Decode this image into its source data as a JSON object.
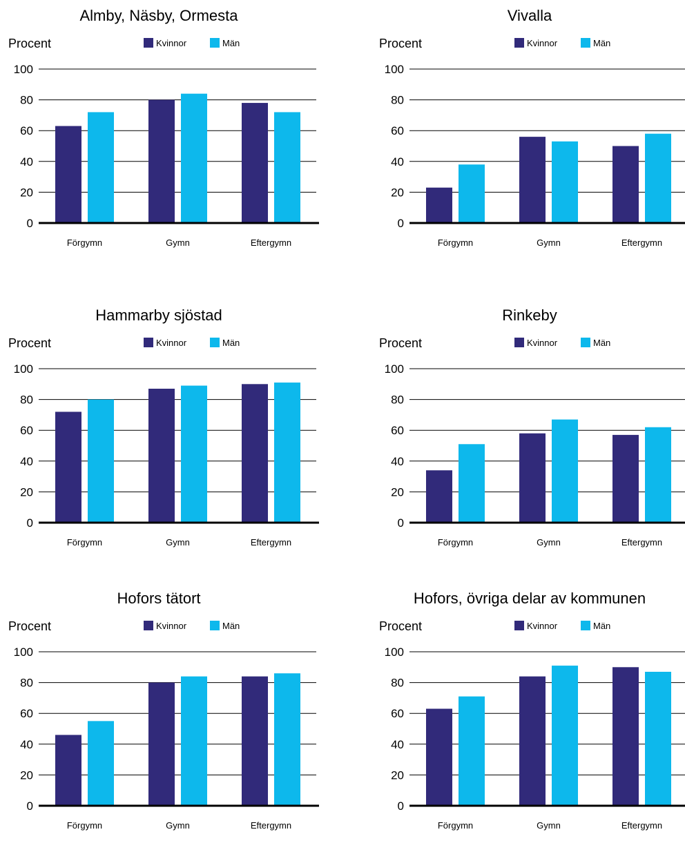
{
  "colors": {
    "kvinnor": "#312a7a",
    "man": "#0db8ec",
    "grid": "#000000"
  },
  "chart_data": [
    {
      "type": "bar",
      "title": "Almby, Näsby, Ormesta",
      "ylabel": "Procent",
      "categories": [
        "Förgymn",
        "Gymn",
        "Eftergymn"
      ],
      "yticks": [
        0,
        20,
        40,
        60,
        80,
        100
      ],
      "ylim": [
        0,
        100
      ],
      "grid": true,
      "legend_position": "top",
      "series": [
        {
          "name": "Kvinnor",
          "values": [
            63,
            80,
            78
          ]
        },
        {
          "name": "Män",
          "values": [
            72,
            84,
            72
          ]
        }
      ]
    },
    {
      "type": "bar",
      "title": "Vivalla",
      "ylabel": "Procent",
      "categories": [
        "Förgymn",
        "Gymn",
        "Eftergymn"
      ],
      "yticks": [
        0,
        20,
        40,
        60,
        80,
        100
      ],
      "ylim": [
        0,
        100
      ],
      "grid": true,
      "legend_position": "top",
      "series": [
        {
          "name": "Kvinnor",
          "values": [
            23,
            56,
            50
          ]
        },
        {
          "name": "Män",
          "values": [
            38,
            53,
            58
          ]
        }
      ]
    },
    {
      "type": "bar",
      "title": "Hammarby sjöstad",
      "ylabel": "Procent",
      "categories": [
        "Förgymn",
        "Gymn",
        "Eftergymn"
      ],
      "yticks": [
        0,
        20,
        40,
        60,
        80,
        100
      ],
      "ylim": [
        0,
        100
      ],
      "grid": true,
      "legend_position": "top",
      "series": [
        {
          "name": "Kvinnor",
          "values": [
            72,
            87,
            90
          ]
        },
        {
          "name": "Män",
          "values": [
            80,
            89,
            91
          ]
        }
      ]
    },
    {
      "type": "bar",
      "title": "Rinkeby",
      "ylabel": "Procent",
      "categories": [
        "Förgymn",
        "Gymn",
        "Eftergymn"
      ],
      "yticks": [
        0,
        20,
        40,
        60,
        80,
        100
      ],
      "ylim": [
        0,
        100
      ],
      "grid": true,
      "legend_position": "top",
      "series": [
        {
          "name": "Kvinnor",
          "values": [
            34,
            58,
            57
          ]
        },
        {
          "name": "Män",
          "values": [
            51,
            67,
            62
          ]
        }
      ]
    },
    {
      "type": "bar",
      "title": "Hofors tätort",
      "ylabel": "Procent",
      "categories": [
        "Förgymn",
        "Gymn",
        "Eftergymn"
      ],
      "yticks": [
        0,
        20,
        40,
        60,
        80,
        100
      ],
      "ylim": [
        0,
        100
      ],
      "grid": true,
      "legend_position": "top",
      "series": [
        {
          "name": "Kvinnor",
          "values": [
            46,
            80,
            84
          ]
        },
        {
          "name": "Män",
          "values": [
            55,
            84,
            86
          ]
        }
      ]
    },
    {
      "type": "bar",
      "title": "Hofors, övriga delar av kommunen",
      "ylabel": "Procent",
      "categories": [
        "Förgymn",
        "Gymn",
        "Eftergymn"
      ],
      "yticks": [
        0,
        20,
        40,
        60,
        80,
        100
      ],
      "ylim": [
        0,
        100
      ],
      "grid": true,
      "legend_position": "top",
      "series": [
        {
          "name": "Kvinnor",
          "values": [
            63,
            84,
            90
          ]
        },
        {
          "name": "Män",
          "values": [
            71,
            91,
            87
          ]
        }
      ]
    }
  ]
}
